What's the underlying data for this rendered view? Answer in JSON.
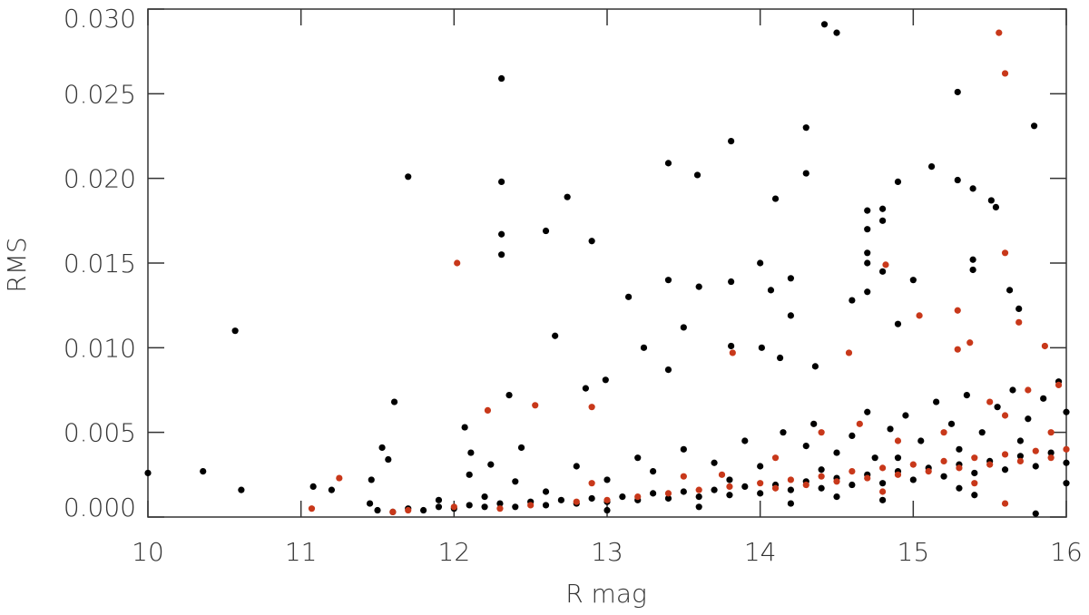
{
  "chart_data": {
    "type": "scatter",
    "xlabel": "R mag",
    "ylabel": "RMS",
    "xlim": [
      10,
      16
    ],
    "ylim": [
      0,
      0.03
    ],
    "xticks": [
      10,
      11,
      12,
      13,
      14,
      15,
      16
    ],
    "yticks": [
      {
        "value": 0,
        "label": "0.000"
      },
      {
        "value": 0.005,
        "label": "0.005"
      },
      {
        "value": 0.01,
        "label": "0.010"
      },
      {
        "value": 0.015,
        "label": "0.015"
      },
      {
        "value": 0.02,
        "label": "0.020"
      },
      {
        "value": 0.025,
        "label": "0.025"
      },
      {
        "value": 0.03,
        "label": "0.030"
      }
    ],
    "series": [
      {
        "color": "#000000",
        "x": [
          10.0,
          10.36,
          10.57,
          10.61,
          11.61,
          11.7,
          11.08,
          11.2,
          11.46,
          11.53,
          11.57,
          12.07,
          12.11,
          12.24,
          12.31,
          12.31,
          12.31,
          12.31,
          12.36,
          12.44,
          12.6,
          12.66,
          12.74,
          12.86,
          12.9,
          12.99,
          13.14,
          13.24,
          13.4,
          13.4,
          13.59,
          13.6,
          13.5,
          13.4,
          13.81,
          13.81,
          13.81,
          14.01,
          14.0,
          14.1,
          14.07,
          14.13,
          14.2,
          14.2,
          14.3,
          14.3,
          14.42,
          14.5,
          14.36,
          14.6,
          14.7,
          14.7,
          14.7,
          14.7,
          14.7,
          14.8,
          14.8,
          14.8,
          14.9,
          14.9,
          15.0,
          15.12,
          15.29,
          15.29,
          15.39,
          15.39,
          15.39,
          15.51,
          15.54,
          15.63,
          15.79,
          15.69,
          11.5,
          11.6,
          11.7,
          11.8,
          11.9,
          12.0,
          12.1,
          12.2,
          12.3,
          12.4,
          12.5,
          12.6,
          12.7,
          12.8,
          12.9,
          13.0,
          13.1,
          13.2,
          13.3,
          13.4,
          13.5,
          13.6,
          13.7,
          13.8,
          13.9,
          14.0,
          14.1,
          14.2,
          14.3,
          14.4,
          14.5,
          14.6,
          14.7,
          14.8,
          14.9,
          15.0,
          15.1,
          15.2,
          15.3,
          15.4,
          15.5,
          15.6,
          15.7,
          15.8,
          15.9,
          16.0,
          12.1,
          12.4,
          12.8,
          13.0,
          13.2,
          13.3,
          13.5,
          13.7,
          13.9,
          14.0,
          14.15,
          14.3,
          14.35,
          14.5,
          14.6,
          14.7,
          14.75,
          14.85,
          14.95,
          15.05,
          15.15,
          15.25,
          15.35,
          15.45,
          15.55,
          15.65,
          15.75,
          15.85,
          15.95,
          16.0,
          15.7,
          15.3,
          14.9,
          14.4,
          13.8,
          12.6,
          12.2,
          11.9,
          11.45,
          13.0,
          13.6,
          14.2,
          14.8,
          15.4,
          16.0,
          15.8,
          15.3,
          14.5
        ],
        "values": [
          0.0026,
          0.0027,
          0.011,
          0.0016,
          0.0068,
          0.0201,
          0.0018,
          0.0016,
          0.0022,
          0.0041,
          0.0034,
          0.0053,
          0.0038,
          0.0031,
          0.0259,
          0.0198,
          0.0167,
          0.0155,
          0.0072,
          0.0041,
          0.0169,
          0.0107,
          0.0189,
          0.0076,
          0.0163,
          0.0081,
          0.013,
          0.01,
          0.014,
          0.0209,
          0.0202,
          0.0136,
          0.0112,
          0.0087,
          0.0222,
          0.0139,
          0.0101,
          0.01,
          0.015,
          0.0188,
          0.0134,
          0.0094,
          0.0141,
          0.0119,
          0.023,
          0.0203,
          0.0291,
          0.0286,
          0.0089,
          0.0128,
          0.0181,
          0.017,
          0.0156,
          0.015,
          0.0133,
          0.0182,
          0.0175,
          0.0145,
          0.0198,
          0.0114,
          0.014,
          0.0207,
          0.0251,
          0.0199,
          0.0194,
          0.0152,
          0.0146,
          0.0187,
          0.0183,
          0.0134,
          0.0231,
          0.0123,
          0.0004,
          0.0003,
          0.0005,
          0.0004,
          0.0006,
          0.0005,
          0.0007,
          0.0006,
          0.0008,
          0.0006,
          0.0009,
          0.0007,
          0.001,
          0.0008,
          0.0011,
          0.0009,
          0.0012,
          0.001,
          0.0014,
          0.0011,
          0.0015,
          0.0012,
          0.0016,
          0.0013,
          0.0018,
          0.0014,
          0.0019,
          0.0016,
          0.0021,
          0.0017,
          0.0023,
          0.0019,
          0.0025,
          0.002,
          0.0027,
          0.0022,
          0.0029,
          0.0024,
          0.0031,
          0.0026,
          0.0033,
          0.0028,
          0.0036,
          0.003,
          0.0038,
          0.0032,
          0.0025,
          0.0021,
          0.003,
          0.0022,
          0.0035,
          0.0027,
          0.004,
          0.0032,
          0.0045,
          0.003,
          0.005,
          0.0042,
          0.0055,
          0.0038,
          0.0048,
          0.0062,
          0.0035,
          0.0052,
          0.006,
          0.0045,
          0.0068,
          0.0055,
          0.0072,
          0.005,
          0.0065,
          0.0075,
          0.0058,
          0.007,
          0.008,
          0.0062,
          0.0045,
          0.004,
          0.0035,
          0.0028,
          0.0022,
          0.0015,
          0.0012,
          0.001,
          0.0008,
          0.0004,
          0.0006,
          0.0008,
          0.001,
          0.0013,
          0.002,
          0.0002,
          0.0017,
          0.0012
        ]
      },
      {
        "color": "#c8381a",
        "x": [
          12.02,
          15.56,
          15.6,
          15.6,
          14.82,
          15.04,
          15.29,
          15.69,
          13.82,
          14.58,
          15.29,
          15.37,
          12.9,
          12.53,
          12.22,
          11.25,
          11.07,
          15.86,
          11.6,
          11.7,
          12.0,
          12.3,
          12.5,
          12.8,
          13.0,
          13.2,
          13.4,
          13.6,
          13.8,
          14.0,
          14.1,
          14.2,
          14.3,
          14.4,
          14.5,
          14.6,
          14.7,
          14.8,
          14.9,
          15.0,
          15.1,
          15.2,
          15.3,
          15.4,
          15.5,
          15.6,
          15.7,
          15.8,
          15.9,
          16.0,
          15.6,
          15.75,
          15.5,
          15.2,
          14.9,
          14.65,
          14.4,
          14.1,
          13.75,
          13.5,
          12.9,
          15.95,
          15.6,
          15.4,
          14.8,
          15.9
        ],
        "values": [
          0.015,
          0.0286,
          0.0262,
          0.0156,
          0.0149,
          0.0119,
          0.0122,
          0.0115,
          0.0097,
          0.0097,
          0.0099,
          0.0103,
          0.0065,
          0.0066,
          0.0063,
          0.0023,
          0.0005,
          0.0101,
          0.0003,
          0.0004,
          0.0006,
          0.0005,
          0.0007,
          0.0009,
          0.001,
          0.0012,
          0.0014,
          0.0016,
          0.0018,
          0.002,
          0.0017,
          0.0022,
          0.0019,
          0.0024,
          0.0021,
          0.0027,
          0.0023,
          0.0029,
          0.0025,
          0.0031,
          0.0027,
          0.0033,
          0.0029,
          0.0035,
          0.0031,
          0.0037,
          0.0033,
          0.0039,
          0.0035,
          0.004,
          0.006,
          0.0075,
          0.0068,
          0.005,
          0.0045,
          0.0055,
          0.005,
          0.0035,
          0.0025,
          0.0024,
          0.002,
          0.0078,
          0.0008,
          0.002,
          0.0015,
          0.005
        ]
      }
    ]
  }
}
